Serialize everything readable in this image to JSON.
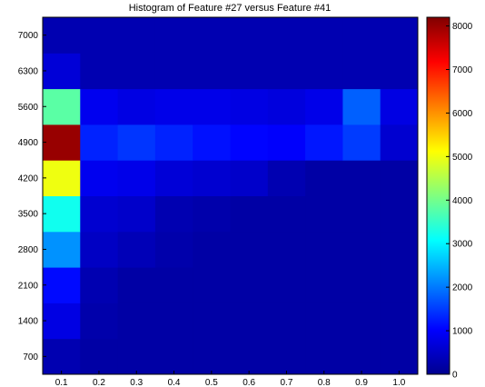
{
  "chart_data": {
    "type": "heatmap",
    "title": "Histogram of Feature #27 versus Feature #41",
    "xlabel": "",
    "ylabel": "",
    "x_categories": [
      "0.1",
      "0.2",
      "0.3",
      "0.4",
      "0.5",
      "0.6",
      "0.7",
      "0.8",
      "0.9",
      "1.0"
    ],
    "y_categories": [
      "700",
      "1400",
      "2100",
      "2800",
      "3500",
      "4200",
      "4900",
      "5600",
      "6300",
      "7000"
    ],
    "values": [
      [
        400,
        300,
        300,
        300,
        300,
        300,
        300,
        300,
        300,
        300
      ],
      [
        800,
        350,
        300,
        300,
        300,
        300,
        300,
        300,
        300,
        300
      ],
      [
        1100,
        400,
        300,
        300,
        300,
        300,
        300,
        300,
        300,
        300
      ],
      [
        2200,
        550,
        450,
        350,
        300,
        300,
        300,
        300,
        300,
        300
      ],
      [
        3200,
        650,
        600,
        400,
        350,
        300,
        300,
        300,
        300,
        300
      ],
      [
        5000,
        900,
        850,
        700,
        650,
        600,
        400,
        300,
        300,
        300
      ],
      [
        8000,
        1300,
        1450,
        1300,
        1150,
        1050,
        1000,
        1200,
        1500,
        650
      ],
      [
        3800,
        900,
        800,
        850,
        850,
        800,
        750,
        850,
        1800,
        800
      ],
      [
        700,
        400,
        400,
        400,
        400,
        400,
        400,
        400,
        400,
        400
      ],
      [
        400,
        400,
        400,
        400,
        400,
        400,
        400,
        400,
        400,
        400
      ]
    ],
    "colorbar": {
      "min": 0,
      "max": 8200,
      "ticks": [
        "0",
        "1000",
        "2000",
        "3000",
        "4000",
        "5000",
        "6000",
        "7000",
        "8000"
      ],
      "colormap": "jet"
    },
    "grid": false,
    "legend": "colorbar-right"
  }
}
